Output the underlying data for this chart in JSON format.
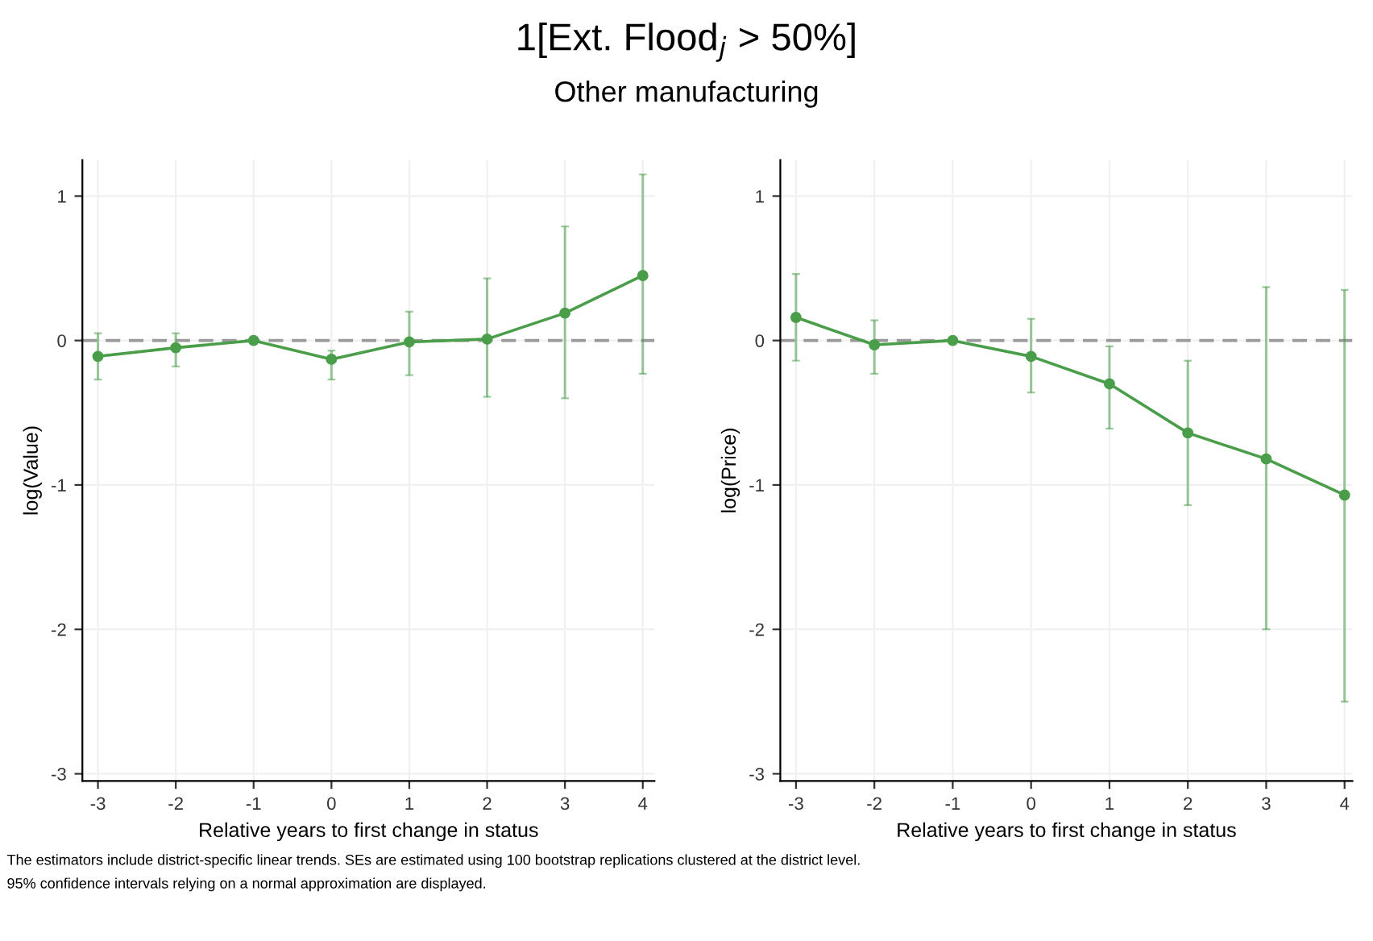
{
  "chart_data": [
    {
      "type": "line",
      "title": "1[Ext. Flood$_{j}$ > 50%]",
      "subtitle": "Other manufacturing",
      "xlabel": "Relative years to first change in status",
      "ylabel": "log(Value)",
      "annotations": [
        "The estimators include district-specific linear trends. SEs are estimated using 100 bootstrap replications clustered at the district level.",
        "95% confidence intervals relying on a normal approximation are displayed."
      ],
      "x": [
        -3,
        -2,
        -1,
        0,
        1,
        2,
        3,
        4
      ],
      "series": [
        {
          "color": "#4a9e4a",
          "values": [
            -0.11,
            -0.05,
            0,
            -0.13,
            -0.01,
            0.01,
            0.19,
            0.45
          ],
          "errors": [
            [
              -0.27,
              0.05
            ],
            [
              -0.18,
              0.05
            ],
            null,
            [
              -0.27,
              -0.07
            ],
            [
              -0.24,
              0.2
            ],
            [
              -0.39,
              0.43
            ],
            [
              -0.4,
              0.79
            ],
            [
              -0.23,
              1.15
            ]
          ]
        }
      ],
      "xlim": [
        -3.2,
        4.15
      ],
      "ylim": [
        -3.05,
        1.25
      ],
      "xticks": [
        -3,
        -2,
        -1,
        0,
        1,
        2,
        3,
        4
      ],
      "yticks": [
        -3,
        -2,
        -1,
        0,
        1
      ],
      "ref_lines": [
        {
          "axis": "y",
          "value": 0,
          "color": "#999999",
          "line_style": "dashed"
        }
      ],
      "grid": true,
      "marker": "circle",
      "line_style": "solid"
    },
    {
      "type": "line",
      "xlabel": "Relative years to first change in status",
      "ylabel": "log(Price)",
      "x": [
        -3,
        -2,
        -1,
        0,
        1,
        2,
        3,
        4
      ],
      "series": [
        {
          "color": "#4a9e4a",
          "values": [
            0.16,
            -0.03,
            0,
            -0.11,
            -0.3,
            -0.64,
            -0.82,
            -1.07
          ],
          "errors": [
            [
              -0.14,
              0.46
            ],
            [
              -0.23,
              0.14
            ],
            null,
            [
              -0.36,
              0.15
            ],
            [
              -0.61,
              -0.04
            ],
            [
              -1.14,
              -0.14
            ],
            [
              -2.0,
              0.37
            ],
            [
              -2.5,
              0.35
            ]
          ]
        }
      ],
      "xlim": [
        -3.2,
        4.1
      ],
      "ylim": [
        -3.05,
        1.25
      ],
      "xticks": [
        -3,
        -2,
        -1,
        0,
        1,
        2,
        3,
        4
      ],
      "yticks": [
        -3,
        -2,
        -1,
        0,
        1
      ],
      "ref_lines": [
        {
          "axis": "y",
          "value": 0,
          "color": "#999999",
          "line_style": "dashed"
        }
      ],
      "grid": true,
      "marker": "circle",
      "line_style": "solid"
    }
  ]
}
